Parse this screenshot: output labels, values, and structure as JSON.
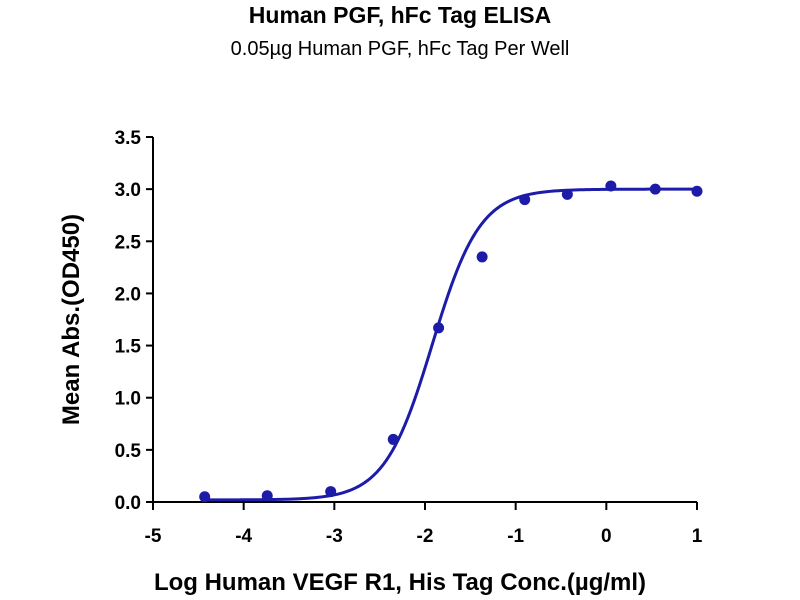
{
  "chart_data": {
    "type": "scatter",
    "title": "Human PGF, hFc Tag ELISA",
    "subtitle": "0.05µg Human PGF, hFc Tag Per Well",
    "xlabel": "Log Human VEGF R1, His Tag Conc.(µg/ml)",
    "ylabel": "Mean Abs.(OD450)",
    "xlim": [
      -5,
      1
    ],
    "ylim": [
      0,
      3.5
    ],
    "xticks": [
      -5,
      -4,
      -3,
      -2,
      -1,
      0,
      1
    ],
    "yticks": [
      0.0,
      0.5,
      1.0,
      1.5,
      2.0,
      2.5,
      3.0,
      3.5
    ],
    "xtick_labels": [
      "-5",
      "-4",
      "-3",
      "-2",
      "-1",
      "0",
      "1"
    ],
    "ytick_labels": [
      "0.0",
      "0.5",
      "1.0",
      "1.5",
      "2.0",
      "2.5",
      "3.0",
      "3.5"
    ],
    "series": [
      {
        "color": "#1c1ca8",
        "points": [
          {
            "x": -4.43,
            "y": 0.05
          },
          {
            "x": -3.74,
            "y": 0.06
          },
          {
            "x": -3.04,
            "y": 0.1
          },
          {
            "x": -2.35,
            "y": 0.6
          },
          {
            "x": -1.85,
            "y": 1.67
          },
          {
            "x": -1.37,
            "y": 2.35
          },
          {
            "x": -0.9,
            "y": 2.9
          },
          {
            "x": -0.43,
            "y": 2.95
          },
          {
            "x": 0.05,
            "y": 3.03
          },
          {
            "x": 0.54,
            "y": 3.0
          },
          {
            "x": 1.0,
            "y": 2.98
          }
        ],
        "fit_curve": {
          "model": "4PL",
          "bottom": 0.02,
          "top": 3.0,
          "log_ec50": -1.92,
          "hill_slope": 1.65
        }
      }
    ],
    "grid": false,
    "legend": "none"
  }
}
